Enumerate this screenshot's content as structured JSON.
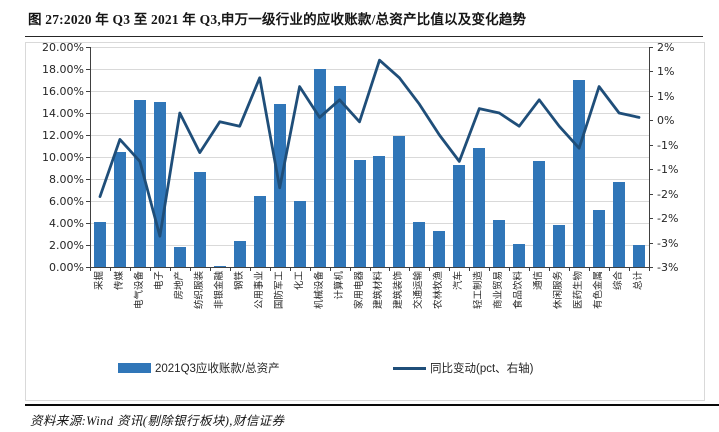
{
  "title": "图 27:2020 年 Q3 至 2021 年 Q3,申万一级行业的应收账款/总资产比值以及变化趋势",
  "footer": {
    "source": "资料来源:Wind 资讯(剔除银行板块),财信证券"
  },
  "legend": {
    "bar_label": "2021Q3应收账款/总资产",
    "line_label": "同比变动(pct、右轴)"
  },
  "colors": {
    "bar": "#3076B8",
    "line": "#1F4E79",
    "grid": "#D9D9D9",
    "axis": "#404040",
    "text": "#262626"
  },
  "chart_data": {
    "type": "bar",
    "subtype": "bar-with-line-dual-axis",
    "categories": [
      "采掘",
      "传媒",
      "电气设备",
      "电子",
      "房地产",
      "纺织服装",
      "非银金融",
      "钢铁",
      "公用事业",
      "国防军工",
      "化工",
      "机械设备",
      "计算机",
      "家用电器",
      "建筑材料",
      "建筑装饰",
      "交通运输",
      "农林牧渔",
      "汽车",
      "轻工制造",
      "商业贸易",
      "食品饮料",
      "通信",
      "休闲服务",
      "医药生物",
      "有色金属",
      "综合",
      "总计"
    ],
    "series": [
      {
        "name": "2021Q3应收账款/总资产",
        "type": "bar",
        "axis": "left",
        "unit": "%",
        "values": [
          4.1,
          10.5,
          15.2,
          15.0,
          1.8,
          8.6,
          0.1,
          2.4,
          6.5,
          14.8,
          6.0,
          18.0,
          16.5,
          9.7,
          10.1,
          11.9,
          4.1,
          3.3,
          9.3,
          10.8,
          4.3,
          2.1,
          9.6,
          3.8,
          17.0,
          5.2,
          7.7,
          2.0
        ]
      },
      {
        "name": "同比变动(pct、右轴)",
        "type": "line",
        "axis": "right",
        "unit": "pct",
        "values": [
          -1.4,
          -0.1,
          -0.6,
          -2.3,
          0.5,
          -0.4,
          0.3,
          0.2,
          1.3,
          -1.2,
          1.1,
          0.4,
          0.8,
          0.3,
          1.7,
          1.3,
          0.7,
          0.0,
          -0.6,
          0.6,
          0.5,
          0.2,
          0.8,
          0.2,
          -0.3,
          1.1,
          0.5,
          0.4
        ]
      }
    ],
    "left_axis": {
      "min": 0,
      "max": 20,
      "tick_labels": [
        "20.00%",
        "18.00%",
        "16.00%",
        "14.00%",
        "12.00%",
        "10.00%",
        "8.00%",
        "6.00%",
        "4.00%",
        "2.00%",
        "0.00%"
      ]
    },
    "right_axis": {
      "min": -3,
      "max": 2,
      "tick_labels": [
        "2%",
        "1%",
        "1%",
        "0%",
        "-1%",
        "-1%",
        "-2%",
        "-2%",
        "-3%",
        "-3%"
      ]
    },
    "grid": true,
    "legend_position": "bottom"
  }
}
